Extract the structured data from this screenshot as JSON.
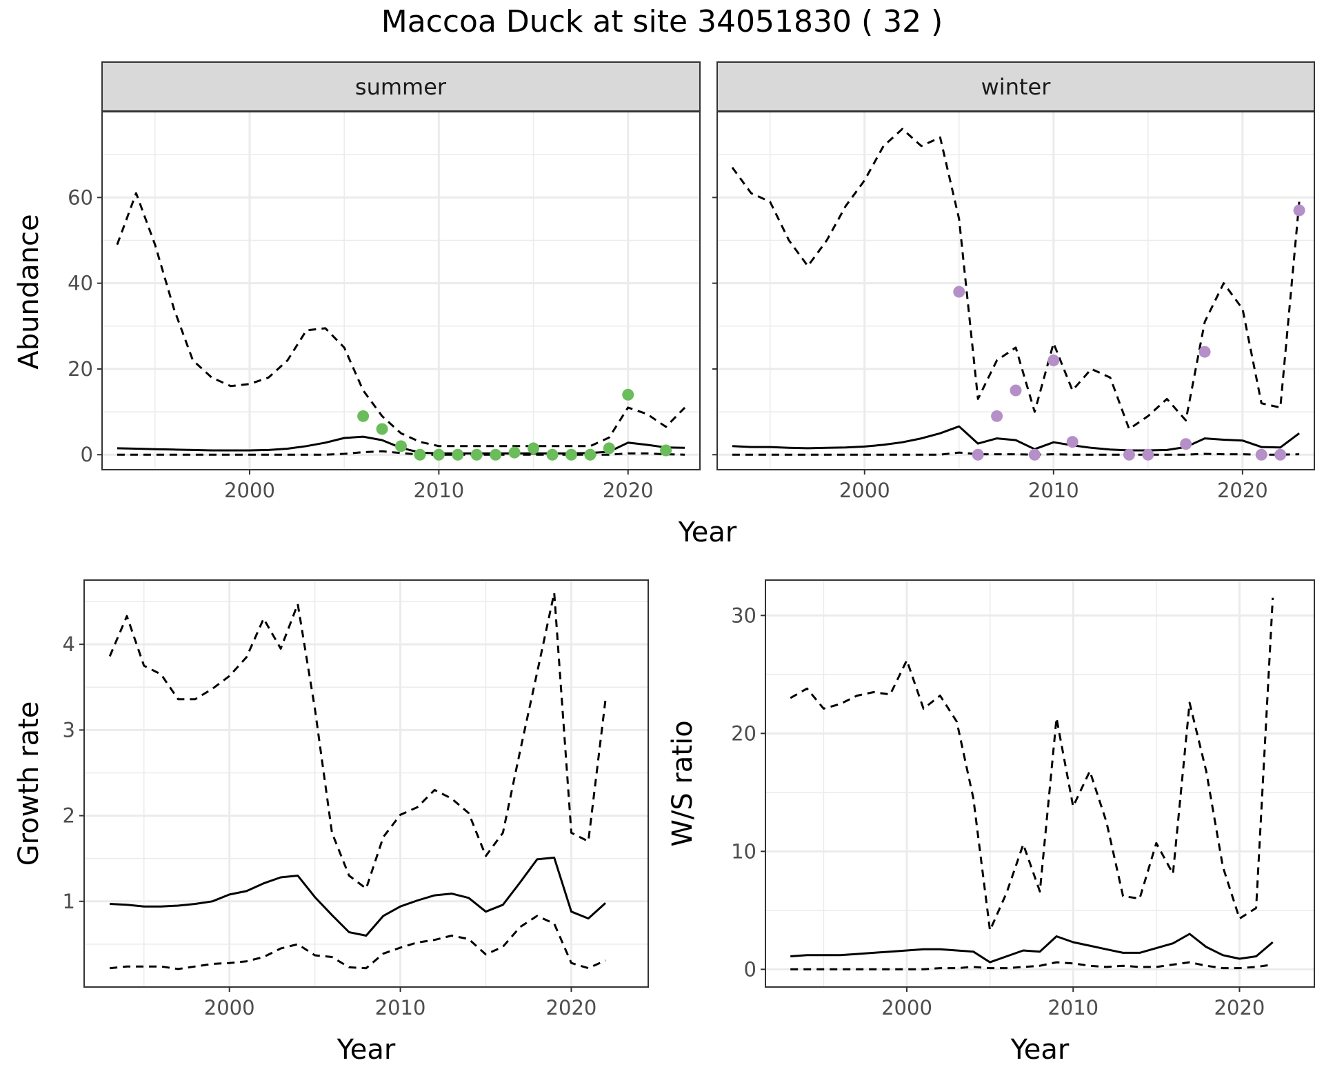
{
  "title": "Maccoa Duck at site 34051830 ( 32 )",
  "colors": {
    "summer_points": "#6abd5a",
    "winter_points": "#b58fc7",
    "lines": "#000000",
    "grid": "#ebebeb",
    "strip_fill": "#d9d9d9"
  },
  "chart_data": [
    {
      "type": "line",
      "panel": "summer",
      "strip_label": "summer",
      "xlabel": "Year",
      "ylabel": "Abundance",
      "xlim": [
        1992.2,
        2023.8
      ],
      "ylim": [
        -3.5,
        80
      ],
      "x_ticks": [
        2000,
        2010,
        2020
      ],
      "y_ticks": [
        0,
        20,
        40,
        60
      ],
      "grid": true,
      "series": [
        {
          "style": "solid",
          "x": [
            1993,
            1994,
            1995,
            1996,
            1997,
            1998,
            1999,
            2000,
            2001,
            2002,
            2003,
            2004,
            2005,
            2006,
            2007,
            2008,
            2009,
            2010,
            2011,
            2012,
            2013,
            2014,
            2015,
            2016,
            2017,
            2018,
            2019,
            2020,
            2021,
            2022,
            2023
          ],
          "y": [
            1.5,
            1.4,
            1.3,
            1.2,
            1.1,
            1.0,
            1.0,
            1.0,
            1.1,
            1.4,
            2.0,
            2.8,
            3.9,
            4.2,
            3.4,
            1.6,
            0.5,
            0.3,
            0.3,
            0.3,
            0.3,
            0.3,
            0.3,
            0.3,
            0.3,
            0.4,
            0.7,
            2.8,
            2.3,
            1.7,
            1.6
          ]
        },
        {
          "style": "dashed",
          "x": [
            1993,
            1994,
            1995,
            1996,
            1997,
            1998,
            1999,
            2000,
            2001,
            2002,
            2003,
            2004,
            2005,
            2006,
            2007,
            2008,
            2009,
            2010,
            2011,
            2012,
            2013,
            2014,
            2015,
            2016,
            2017,
            2018,
            2019,
            2020,
            2021,
            2022,
            2023
          ],
          "y": [
            49,
            61,
            49,
            34,
            22,
            18,
            16,
            16.5,
            18,
            22,
            29,
            29.5,
            25,
            15,
            9,
            5,
            3,
            2,
            2,
            2,
            2,
            2,
            2,
            2,
            2,
            2,
            4,
            11,
            9.5,
            6.5,
            11
          ]
        },
        {
          "style": "dashed",
          "x": [
            1993,
            1994,
            1995,
            1996,
            1997,
            1998,
            1999,
            2000,
            2001,
            2002,
            2003,
            2004,
            2005,
            2006,
            2007,
            2008,
            2009,
            2010,
            2011,
            2012,
            2013,
            2014,
            2015,
            2016,
            2017,
            2018,
            2019,
            2020,
            2021,
            2022,
            2023
          ],
          "y": [
            0,
            0,
            0,
            0,
            0,
            0,
            0,
            0,
            0,
            0,
            0,
            0,
            0.2,
            0.6,
            0.8,
            0.4,
            0,
            0,
            0,
            0,
            0,
            0,
            0,
            0,
            0,
            0,
            0,
            0.3,
            0.3,
            0.1,
            0
          ]
        }
      ],
      "points": {
        "x": [
          2006,
          2007,
          2008,
          2009,
          2010,
          2011,
          2012,
          2013,
          2014,
          2015,
          2016,
          2017,
          2018,
          2019,
          2020,
          2022
        ],
        "y": [
          9,
          6,
          2,
          0,
          0,
          0,
          0,
          0,
          0.5,
          1.5,
          0,
          0,
          0,
          1.5,
          14,
          1
        ]
      }
    },
    {
      "type": "line",
      "panel": "winter",
      "strip_label": "winter",
      "xlabel": "Year",
      "ylabel": "Abundance",
      "xlim": [
        1992.2,
        2023.8
      ],
      "ylim": [
        -3.5,
        80
      ],
      "x_ticks": [
        2000,
        2010,
        2020
      ],
      "y_ticks": [
        0,
        20,
        40,
        60
      ],
      "grid": true,
      "series": [
        {
          "style": "solid",
          "x": [
            1993,
            1994,
            1995,
            1996,
            1997,
            1998,
            1999,
            2000,
            2001,
            2002,
            2003,
            2004,
            2005,
            2006,
            2007,
            2008,
            2009,
            2010,
            2011,
            2012,
            2013,
            2014,
            2015,
            2016,
            2017,
            2018,
            2019,
            2020,
            2021,
            2022,
            2023
          ],
          "y": [
            2.0,
            1.8,
            1.8,
            1.6,
            1.5,
            1.6,
            1.7,
            1.9,
            2.3,
            2.9,
            3.8,
            5.0,
            6.6,
            2.6,
            3.8,
            3.4,
            1.3,
            2.9,
            2.2,
            1.6,
            1.2,
            1.0,
            1.0,
            1.1,
            1.8,
            3.8,
            3.5,
            3.3,
            1.8,
            1.7,
            5.0
          ]
        },
        {
          "style": "dashed",
          "x": [
            1993,
            1994,
            1995,
            1996,
            1997,
            1998,
            1999,
            2000,
            2001,
            2002,
            2003,
            2004,
            2005,
            2006,
            2007,
            2008,
            2009,
            2010,
            2011,
            2012,
            2013,
            2014,
            2015,
            2016,
            2017,
            2018,
            2019,
            2020,
            2021,
            2022,
            2023
          ],
          "y": [
            67,
            61,
            59,
            50,
            44,
            50,
            58,
            64,
            72,
            76,
            72,
            74,
            55,
            13,
            22,
            25,
            10,
            26,
            15,
            20,
            18,
            6,
            9,
            13,
            8,
            31,
            40,
            34,
            12,
            11,
            59
          ]
        },
        {
          "style": "dashed",
          "x": [
            1993,
            1994,
            1995,
            1996,
            1997,
            1998,
            1999,
            2000,
            2001,
            2002,
            2003,
            2004,
            2005,
            2006,
            2007,
            2008,
            2009,
            2010,
            2011,
            2012,
            2013,
            2014,
            2015,
            2016,
            2017,
            2018,
            2019,
            2020,
            2021,
            2022,
            2023
          ],
          "y": [
            0,
            0,
            0,
            0,
            0,
            0,
            0,
            0,
            0,
            0,
            0,
            0,
            0.5,
            0.1,
            0.1,
            0.1,
            0,
            0.1,
            0,
            0,
            0,
            0,
            0,
            0,
            0,
            0.2,
            0.1,
            0.1,
            0,
            0,
            0.1
          ]
        }
      ],
      "points": {
        "x": [
          2005,
          2006,
          2007,
          2008,
          2009,
          2010,
          2011,
          2014,
          2015,
          2017,
          2018,
          2021,
          2022,
          2023
        ],
        "y": [
          38,
          0,
          9,
          15,
          0,
          22,
          3,
          0,
          0,
          2.5,
          24,
          0,
          0,
          57
        ]
      }
    },
    {
      "type": "line",
      "panel": "growth",
      "xlabel": "Year",
      "ylabel": "Growth rate",
      "xlim": [
        1991.5,
        2024.5
      ],
      "ylim": [
        0,
        4.75
      ],
      "x_ticks": [
        2000,
        2010,
        2020
      ],
      "y_ticks": [
        1,
        2,
        3,
        4
      ],
      "grid": true,
      "series": [
        {
          "style": "solid",
          "x": [
            1993,
            1994,
            1995,
            1996,
            1997,
            1998,
            1999,
            2000,
            2001,
            2002,
            2003,
            2004,
            2005,
            2006,
            2007,
            2008,
            2009,
            2010,
            2011,
            2012,
            2013,
            2014,
            2015,
            2016,
            2017,
            2018,
            2019,
            2020,
            2021,
            2022
          ],
          "y": [
            0.97,
            0.96,
            0.94,
            0.94,
            0.95,
            0.97,
            1.0,
            1.08,
            1.12,
            1.21,
            1.28,
            1.3,
            1.05,
            0.84,
            0.64,
            0.6,
            0.83,
            0.94,
            1.01,
            1.07,
            1.09,
            1.04,
            0.88,
            0.96,
            1.22,
            1.49,
            1.51,
            0.88,
            0.8,
            0.98
          ]
        },
        {
          "style": "dashed",
          "x": [
            1993,
            1994,
            1995,
            1996,
            1997,
            1998,
            1999,
            2000,
            2001,
            2002,
            2003,
            2004,
            2005,
            2006,
            2007,
            2008,
            2009,
            2010,
            2011,
            2012,
            2013,
            2014,
            2015,
            2016,
            2017,
            2018,
            2019,
            2020,
            2021,
            2022
          ],
          "y": [
            3.86,
            4.33,
            3.75,
            3.65,
            3.36,
            3.36,
            3.48,
            3.63,
            3.85,
            4.3,
            3.95,
            4.47,
            3.25,
            1.8,
            1.3,
            1.15,
            1.75,
            2.01,
            2.1,
            2.3,
            2.2,
            2.03,
            1.53,
            1.8,
            2.75,
            3.67,
            4.6,
            1.8,
            1.7,
            3.35
          ]
        },
        {
          "style": "dashed",
          "x": [
            1993,
            1994,
            1995,
            1996,
            1997,
            1998,
            1999,
            2000,
            2001,
            2002,
            2003,
            2004,
            2005,
            2006,
            2007,
            2008,
            2009,
            2010,
            2011,
            2012,
            2013,
            2014,
            2015,
            2016,
            2017,
            2018,
            2019,
            2020,
            2021,
            2022
          ],
          "y": [
            0.22,
            0.24,
            0.24,
            0.24,
            0.21,
            0.24,
            0.27,
            0.28,
            0.3,
            0.35,
            0.45,
            0.5,
            0.37,
            0.35,
            0.23,
            0.22,
            0.39,
            0.46,
            0.52,
            0.55,
            0.6,
            0.56,
            0.38,
            0.47,
            0.7,
            0.83,
            0.74,
            0.28,
            0.22,
            0.31
          ]
        }
      ]
    },
    {
      "type": "line",
      "panel": "ratio",
      "xlabel": "Year",
      "ylabel": "W/S ratio",
      "xlim": [
        1991.5,
        2024.5
      ],
      "ylim": [
        -1.5,
        33
      ],
      "x_ticks": [
        2000,
        2010,
        2020
      ],
      "y_ticks": [
        0,
        10,
        20,
        30
      ],
      "grid": true,
      "series": [
        {
          "style": "solid",
          "x": [
            1993,
            1994,
            1995,
            1996,
            1997,
            1998,
            1999,
            2000,
            2001,
            2002,
            2003,
            2004,
            2005,
            2006,
            2007,
            2008,
            2009,
            2010,
            2011,
            2012,
            2013,
            2014,
            2015,
            2016,
            2017,
            2018,
            2019,
            2020,
            2021,
            2022
          ],
          "y": [
            1.1,
            1.2,
            1.2,
            1.2,
            1.3,
            1.4,
            1.5,
            1.6,
            1.7,
            1.7,
            1.6,
            1.5,
            0.6,
            1.1,
            1.6,
            1.5,
            2.8,
            2.3,
            2.0,
            1.7,
            1.4,
            1.4,
            1.8,
            2.2,
            3.0,
            1.9,
            1.2,
            0.9,
            1.1,
            2.3
          ]
        },
        {
          "style": "dashed",
          "x": [
            1993,
            1994,
            1995,
            1996,
            1997,
            1998,
            1999,
            2000,
            2001,
            2002,
            2003,
            2004,
            2005,
            2006,
            2007,
            2008,
            2009,
            2010,
            2011,
            2012,
            2013,
            2014,
            2015,
            2016,
            2017,
            2018,
            2019,
            2020,
            2021,
            2022
          ],
          "y": [
            23,
            23.8,
            22.1,
            22.5,
            23.2,
            23.5,
            23.3,
            26.2,
            22.1,
            23.2,
            21,
            14.5,
            3.3,
            6.5,
            10.6,
            6.6,
            21.3,
            13.8,
            16.8,
            12.5,
            6.2,
            6,
            10.7,
            8.1,
            22.6,
            16.8,
            8.7,
            4.3,
            5.2,
            31.5
          ]
        },
        {
          "style": "dashed",
          "x": [
            1993,
            1994,
            1995,
            1996,
            1997,
            1998,
            1999,
            2000,
            2001,
            2002,
            2003,
            2004,
            2005,
            2006,
            2007,
            2008,
            2009,
            2010,
            2011,
            2012,
            2013,
            2014,
            2015,
            2016,
            2017,
            2018,
            2019,
            2020,
            2021,
            2022
          ],
          "y": [
            0,
            0,
            0,
            0,
            0,
            0,
            0,
            0,
            0,
            0.1,
            0.1,
            0.2,
            0.1,
            0.1,
            0.2,
            0.3,
            0.6,
            0.5,
            0.3,
            0.2,
            0.3,
            0.2,
            0.2,
            0.4,
            0.6,
            0.3,
            0.1,
            0.1,
            0.2,
            0.4
          ]
        }
      ]
    }
  ]
}
